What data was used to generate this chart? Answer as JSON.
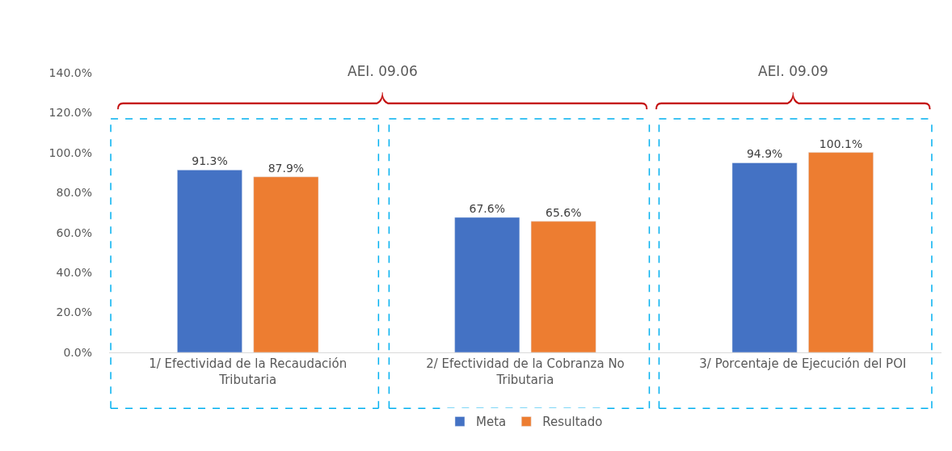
{
  "chart_data": {
    "type": "bar",
    "categories": [
      "1/ Efectividad de la Recaudación Tributaria",
      "2/ Efectividad de la Cobranza No Tributaria",
      "3/ Porcentaje de Ejecución del POI"
    ],
    "series": [
      {
        "name": "Meta",
        "color": "#4472c4",
        "values": [
          91.3,
          67.6,
          94.9
        ],
        "value_labels": [
          "91.3%",
          "67.6%",
          "94.9%"
        ]
      },
      {
        "name": "Resultado",
        "color": "#ed7d31",
        "values": [
          87.9,
          65.6,
          100.1
        ],
        "value_labels": [
          "87.9%",
          "65.6%",
          "100.1%"
        ]
      }
    ],
    "ylim": [
      0,
      140
    ],
    "yticks": [
      {
        "value": 0,
        "label": "0.0%"
      },
      {
        "value": 20,
        "label": "20.0%"
      },
      {
        "value": 40,
        "label": "40.0%"
      },
      {
        "value": 60,
        "label": "60.0%"
      },
      {
        "value": 80,
        "label": "80.0%"
      },
      {
        "value": 100,
        "label": "100.0%"
      },
      {
        "value": 120,
        "label": "120.0%"
      },
      {
        "value": 140,
        "label": "140.0%"
      }
    ],
    "annotations": [
      "AEI. 09.06",
      "AEI. 09.09"
    ],
    "grid": false,
    "legend": "bottom"
  }
}
